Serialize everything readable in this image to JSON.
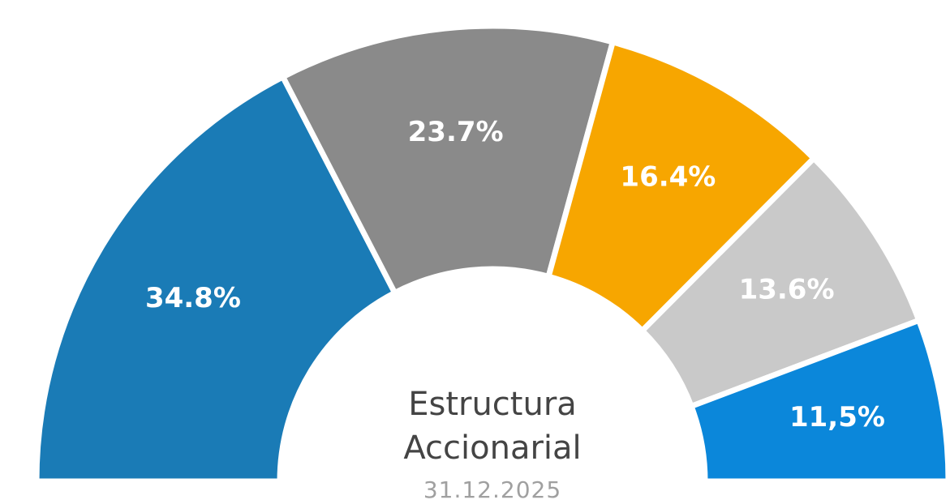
{
  "chart_data": {
    "type": "semi-donut",
    "title": "Estructura Accionarial",
    "subtitle": "31.12.2025",
    "values": [
      34.8,
      23.7,
      16.4,
      13.6,
      11.5
    ],
    "value_labels": [
      "34.8%",
      "23.7%",
      "16.4%",
      "13.6%",
      "11,5%"
    ],
    "colors": [
      "#1a7bb6",
      "#8a8a8a",
      "#f7a600",
      "#c9c9c9",
      "#0b87da"
    ]
  }
}
